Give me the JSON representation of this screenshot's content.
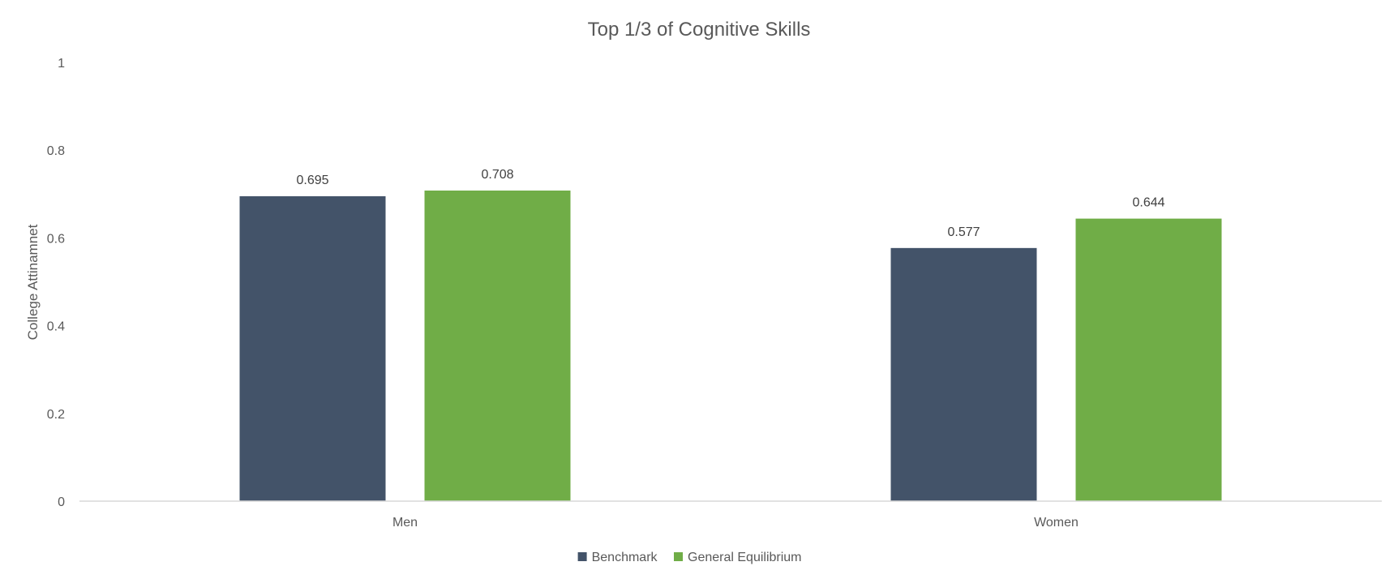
{
  "chart_data": {
    "type": "bar",
    "title": "Top 1/3 of Cognitive Skills",
    "xlabel": "",
    "ylabel": "College Attinamnet",
    "categories": [
      "Men",
      "Women"
    ],
    "series": [
      {
        "name": "Benchmark",
        "values": [
          0.695,
          0.577
        ],
        "labels": [
          "0.695",
          "0.577"
        ],
        "color": "#435369"
      },
      {
        "name": "General Equilibrium",
        "values": [
          0.708,
          0.644
        ],
        "labels": [
          "0.708",
          "0.644"
        ],
        "color": "#70AD47"
      }
    ],
    "ylim": [
      0,
      1
    ],
    "yticks": [
      0,
      0.2,
      0.4,
      0.6,
      0.8,
      1
    ],
    "ytick_labels": [
      "0",
      "0.2",
      "0.4",
      "0.6",
      "0.8",
      "1"
    ],
    "grid": false,
    "legend_position": "bottom"
  }
}
